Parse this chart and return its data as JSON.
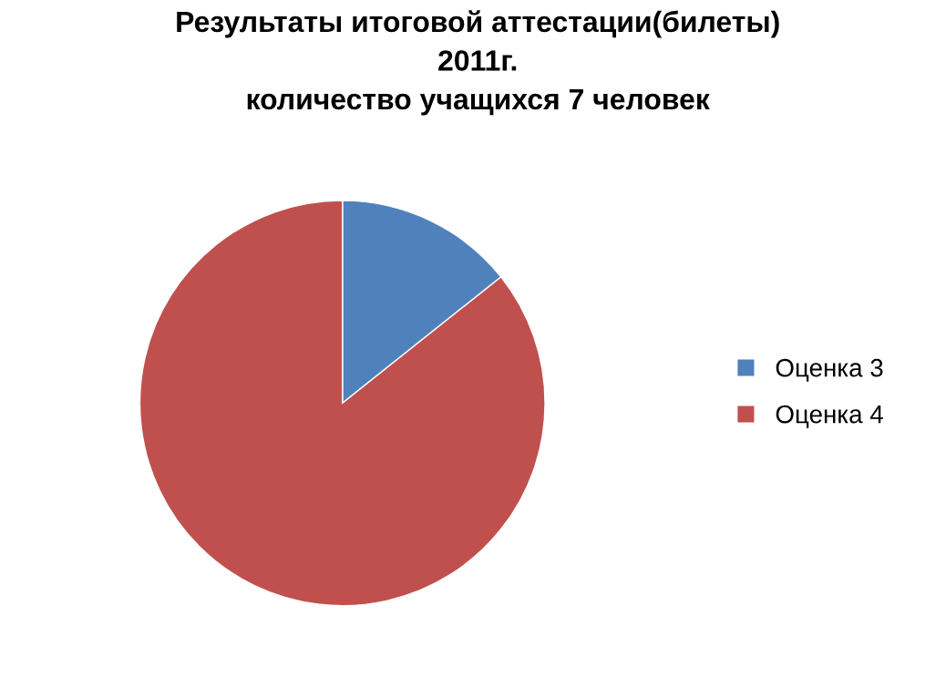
{
  "chart_data": {
    "type": "pie",
    "title": "Результаты итоговой аттестации(билеты)\n2011г.\nколичество учащихся 7 человек",
    "categories": [
      "Оценка 3",
      "Оценка 4"
    ],
    "values": [
      14.3,
      85.7
    ],
    "colors": [
      "#4f81bd",
      "#c0504d"
    ],
    "legend": "right"
  }
}
